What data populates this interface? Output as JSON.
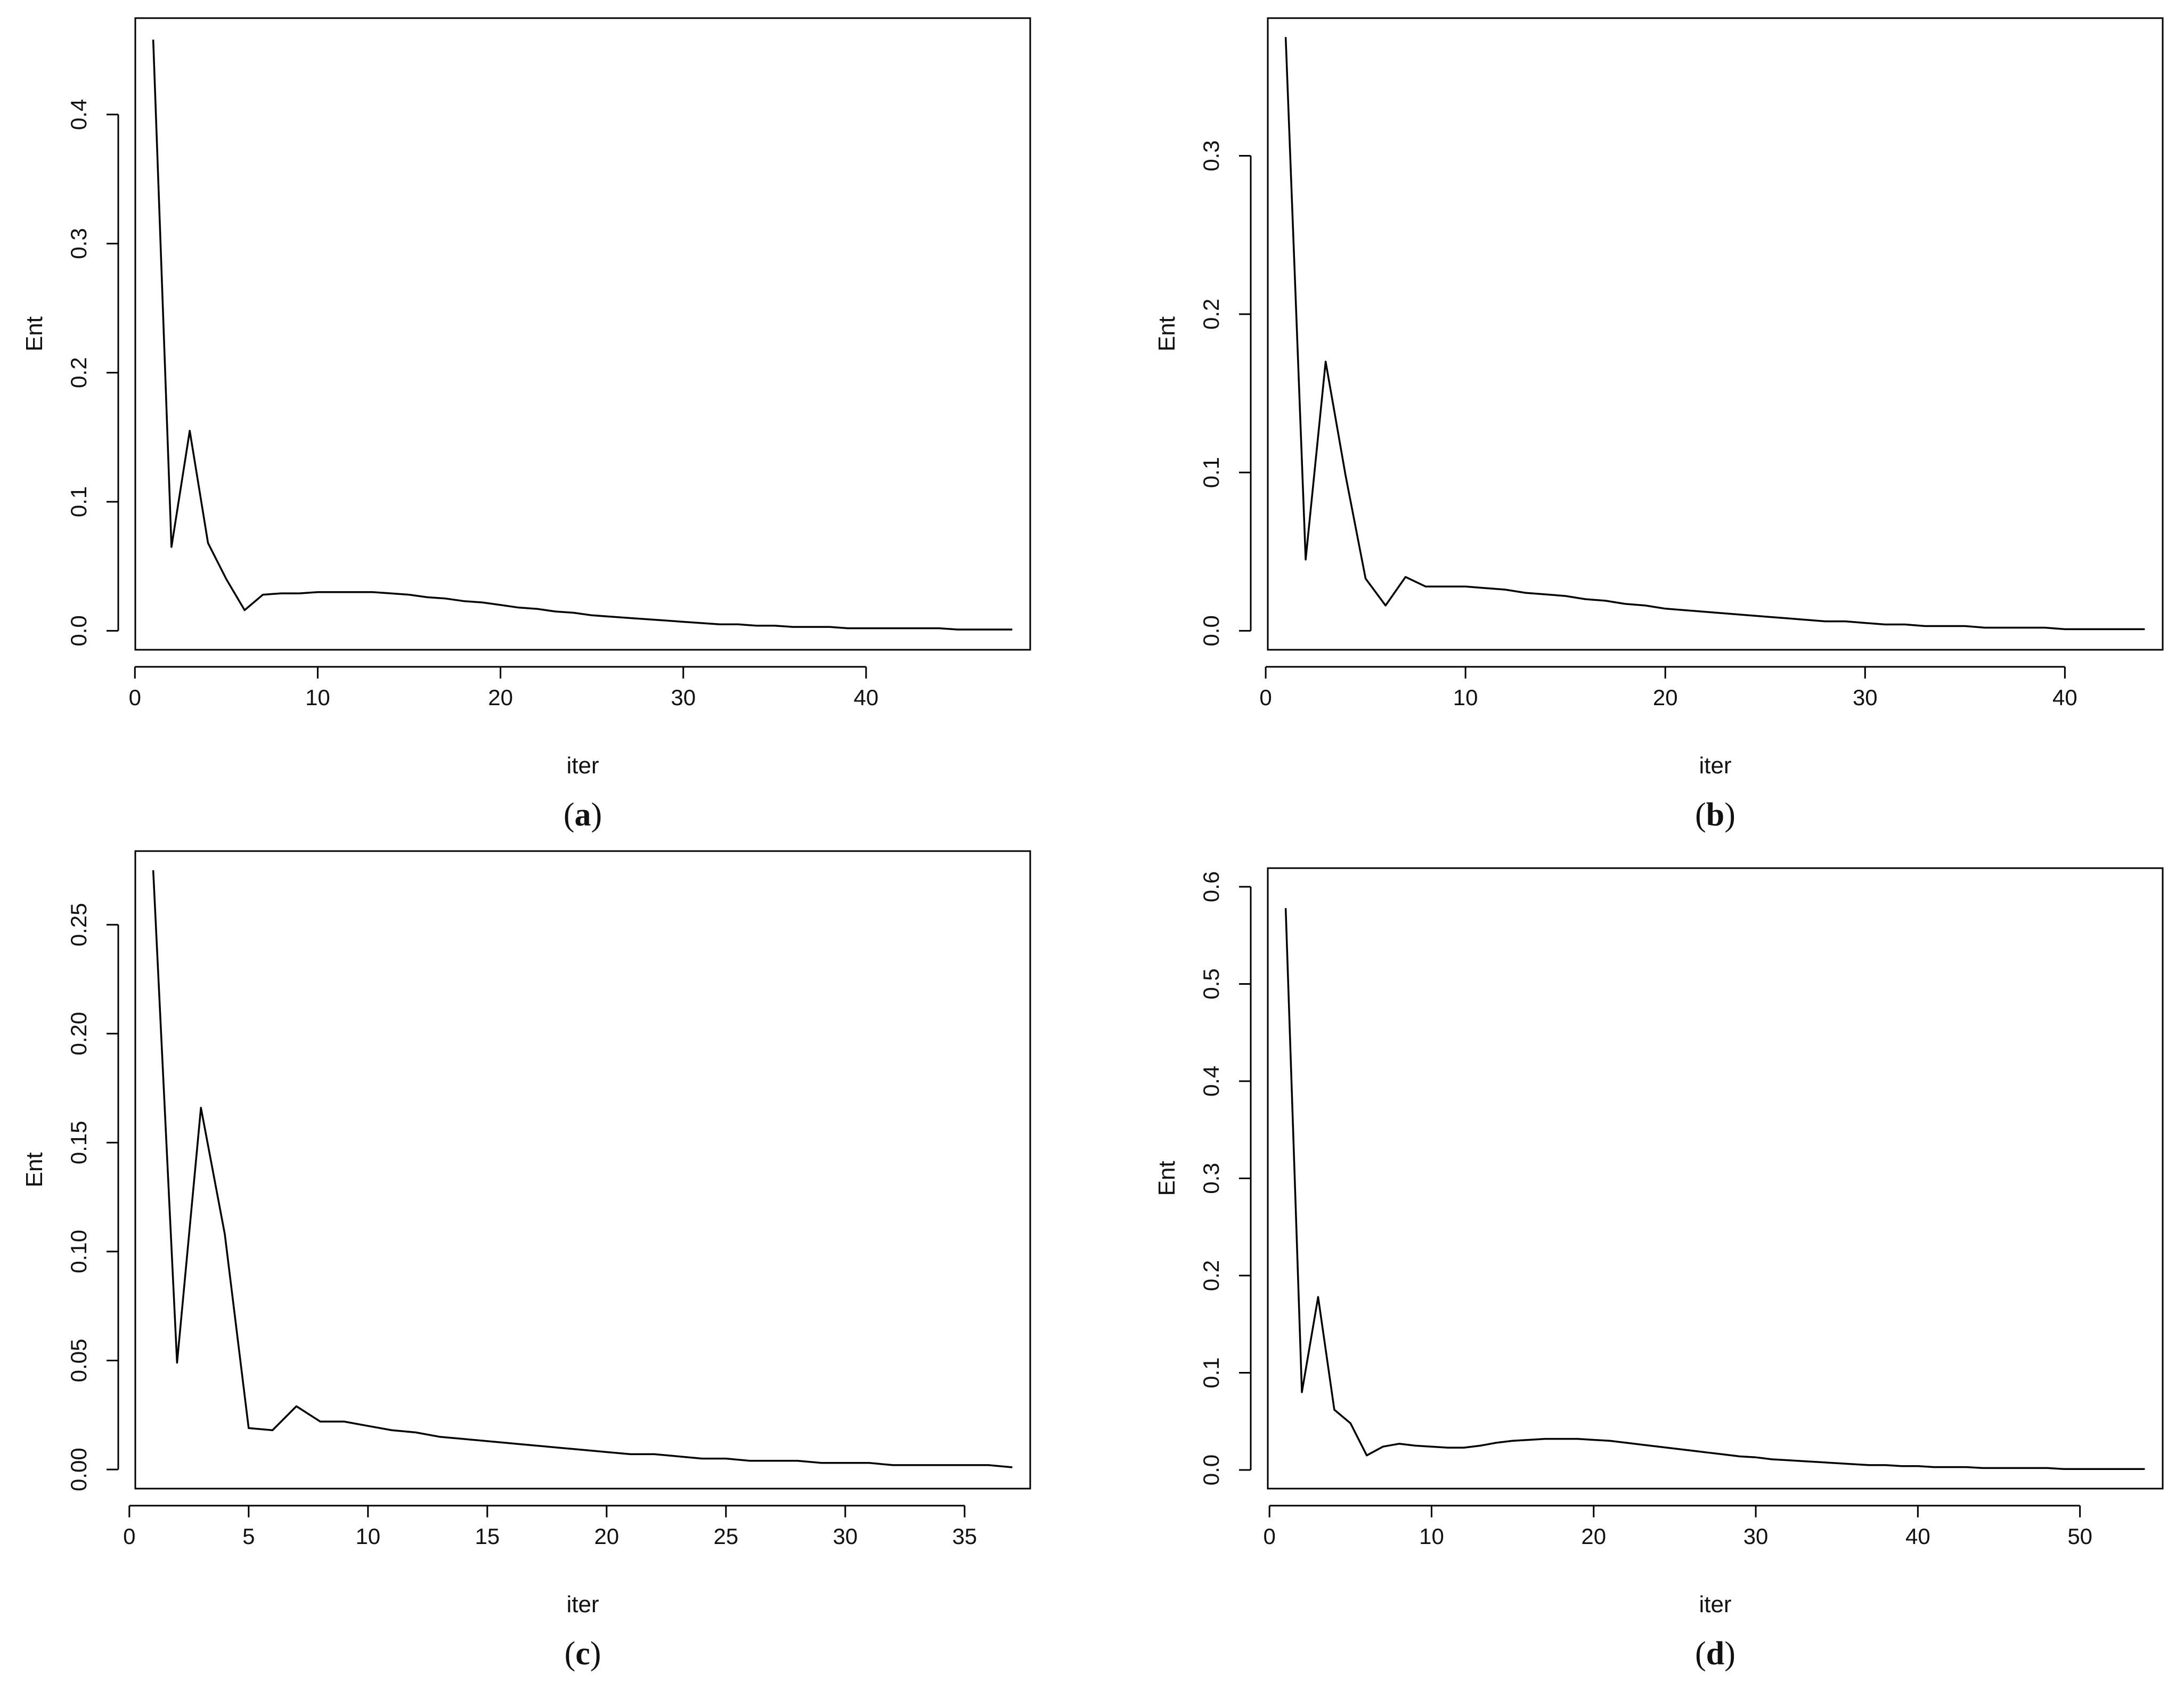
{
  "chart_data": [
    {
      "panel_label": "a",
      "type": "line",
      "xlabel": "iter",
      "ylabel": "Ent",
      "xlim": [
        1,
        48
      ],
      "ylim": [
        0,
        0.46
      ],
      "xticks": [
        0,
        10,
        20,
        30,
        40
      ],
      "yticks": [
        0.0,
        0.1,
        0.2,
        0.3,
        0.4
      ],
      "xtick_labels": [
        "0",
        "10",
        "20",
        "30",
        "40"
      ],
      "ytick_labels": [
        "0.0",
        "0.1",
        "0.2",
        "0.3",
        "0.4"
      ],
      "x": [
        1,
        2,
        3,
        4,
        5,
        6,
        7,
        8,
        9,
        10,
        11,
        12,
        13,
        14,
        15,
        16,
        17,
        18,
        19,
        20,
        21,
        22,
        23,
        24,
        25,
        26,
        27,
        28,
        29,
        30,
        31,
        32,
        33,
        34,
        35,
        36,
        37,
        38,
        39,
        40,
        41,
        42,
        43,
        44,
        45,
        46,
        47,
        48
      ],
      "y": [
        0.458,
        0.065,
        0.155,
        0.068,
        0.04,
        0.016,
        0.028,
        0.029,
        0.029,
        0.03,
        0.03,
        0.03,
        0.03,
        0.029,
        0.028,
        0.026,
        0.025,
        0.023,
        0.022,
        0.02,
        0.018,
        0.017,
        0.015,
        0.014,
        0.012,
        0.011,
        0.01,
        0.009,
        0.008,
        0.007,
        0.006,
        0.005,
        0.005,
        0.004,
        0.004,
        0.003,
        0.003,
        0.003,
        0.002,
        0.002,
        0.002,
        0.002,
        0.002,
        0.002,
        0.001,
        0.001,
        0.001,
        0.001
      ],
      "grid": false
    },
    {
      "panel_label": "b",
      "type": "line",
      "xlabel": "iter",
      "ylabel": "Ent",
      "xlim": [
        1,
        44
      ],
      "ylim": [
        0,
        0.375
      ],
      "xticks": [
        0,
        10,
        20,
        30,
        40
      ],
      "yticks": [
        0.0,
        0.1,
        0.2,
        0.3
      ],
      "xtick_labels": [
        "0",
        "10",
        "20",
        "30",
        "40"
      ],
      "ytick_labels": [
        "0.0",
        "0.1",
        "0.2",
        "0.3"
      ],
      "x": [
        1,
        2,
        3,
        4,
        5,
        6,
        7,
        8,
        9,
        10,
        11,
        12,
        13,
        14,
        15,
        16,
        17,
        18,
        19,
        20,
        21,
        22,
        23,
        24,
        25,
        26,
        27,
        28,
        29,
        30,
        31,
        32,
        33,
        34,
        35,
        36,
        37,
        38,
        39,
        40,
        41,
        42,
        43,
        44
      ],
      "y": [
        0.375,
        0.045,
        0.17,
        0.098,
        0.033,
        0.016,
        0.034,
        0.028,
        0.028,
        0.028,
        0.027,
        0.026,
        0.024,
        0.023,
        0.022,
        0.02,
        0.019,
        0.017,
        0.016,
        0.014,
        0.013,
        0.012,
        0.011,
        0.01,
        0.009,
        0.008,
        0.007,
        0.006,
        0.006,
        0.005,
        0.004,
        0.004,
        0.003,
        0.003,
        0.003,
        0.002,
        0.002,
        0.002,
        0.002,
        0.001,
        0.001,
        0.001,
        0.001,
        0.001
      ],
      "grid": false
    },
    {
      "panel_label": "c",
      "type": "line",
      "xlabel": "iter",
      "ylabel": "Ent",
      "xlim": [
        1,
        37
      ],
      "ylim": [
        0,
        0.275
      ],
      "xticks": [
        0,
        5,
        10,
        15,
        20,
        25,
        30,
        35
      ],
      "yticks": [
        0.0,
        0.05,
        0.1,
        0.15,
        0.2,
        0.25
      ],
      "xtick_labels": [
        "0",
        "5",
        "10",
        "15",
        "20",
        "25",
        "30",
        "35"
      ],
      "ytick_labels": [
        "0.00",
        "0.05",
        "0.10",
        "0.15",
        "0.20",
        "0.25"
      ],
      "x": [
        1,
        2,
        3,
        4,
        5,
        6,
        7,
        8,
        9,
        10,
        11,
        12,
        13,
        14,
        15,
        16,
        17,
        18,
        19,
        20,
        21,
        22,
        23,
        24,
        25,
        26,
        27,
        28,
        29,
        30,
        31,
        32,
        33,
        34,
        35,
        36,
        37
      ],
      "y": [
        0.275,
        0.049,
        0.166,
        0.108,
        0.019,
        0.018,
        0.029,
        0.022,
        0.022,
        0.02,
        0.018,
        0.017,
        0.015,
        0.014,
        0.013,
        0.012,
        0.011,
        0.01,
        0.009,
        0.008,
        0.007,
        0.007,
        0.006,
        0.005,
        0.005,
        0.004,
        0.004,
        0.004,
        0.003,
        0.003,
        0.003,
        0.002,
        0.002,
        0.002,
        0.002,
        0.002,
        0.001
      ],
      "grid": false
    },
    {
      "panel_label": "d",
      "type": "line",
      "xlabel": "iter",
      "ylabel": "Ent",
      "xlim": [
        1,
        54
      ],
      "ylim": [
        0,
        0.6
      ],
      "xticks": [
        0,
        10,
        20,
        30,
        40,
        50
      ],
      "yticks": [
        0.0,
        0.1,
        0.2,
        0.3,
        0.4,
        0.5,
        0.6
      ],
      "xtick_labels": [
        "0",
        "10",
        "20",
        "30",
        "40",
        "50"
      ],
      "ytick_labels": [
        "0.0",
        "0.1",
        "0.2",
        "0.3",
        "0.4",
        "0.5",
        "0.6"
      ],
      "x": [
        1,
        2,
        3,
        4,
        5,
        6,
        7,
        8,
        9,
        10,
        11,
        12,
        13,
        14,
        15,
        16,
        17,
        18,
        19,
        20,
        21,
        22,
        23,
        24,
        25,
        26,
        27,
        28,
        29,
        30,
        31,
        32,
        33,
        34,
        35,
        36,
        37,
        38,
        39,
        40,
        41,
        42,
        43,
        44,
        45,
        46,
        47,
        48,
        49,
        50,
        51,
        52,
        53,
        54
      ],
      "y": [
        0.578,
        0.08,
        0.178,
        0.062,
        0.048,
        0.015,
        0.024,
        0.027,
        0.025,
        0.024,
        0.023,
        0.023,
        0.025,
        0.028,
        0.03,
        0.031,
        0.032,
        0.032,
        0.032,
        0.031,
        0.03,
        0.028,
        0.026,
        0.024,
        0.022,
        0.02,
        0.018,
        0.016,
        0.014,
        0.013,
        0.011,
        0.01,
        0.009,
        0.008,
        0.007,
        0.006,
        0.005,
        0.005,
        0.004,
        0.004,
        0.003,
        0.003,
        0.003,
        0.002,
        0.002,
        0.002,
        0.002,
        0.002,
        0.001,
        0.001,
        0.001,
        0.001,
        0.001,
        0.001
      ],
      "grid": false
    }
  ]
}
